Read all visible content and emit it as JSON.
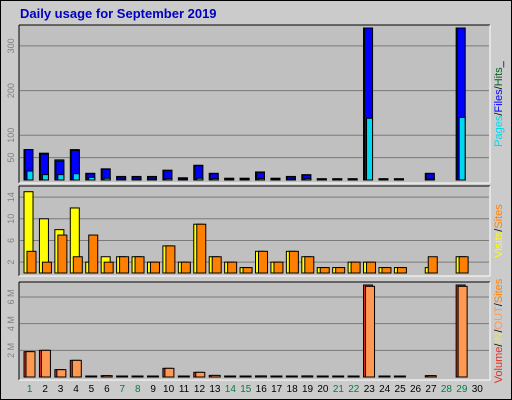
{
  "title": "Daily usage for September 2019",
  "colors": {
    "pages": "#00d8f0",
    "files": "#0000ff",
    "hits": "#006020",
    "visits": "#ffff00",
    "sites": "#ff8000",
    "kbytes": "#e03020",
    "in": "#e8e860",
    "out": "#ff9850",
    "weekend": "#008040",
    "weekday": "#000000",
    "panel": "#c0c0c0"
  },
  "chart_data": {
    "type": "bar",
    "days": [
      "1",
      "2",
      "3",
      "4",
      "5",
      "6",
      "7",
      "8",
      "9",
      "10",
      "11",
      "12",
      "13",
      "14",
      "15",
      "16",
      "17",
      "18",
      "19",
      "20",
      "21",
      "22",
      "23",
      "24",
      "25",
      "26",
      "27",
      "28",
      "29",
      "30"
    ],
    "weekend_days": [
      "1",
      "7",
      "8",
      "14",
      "15",
      "21",
      "22",
      "28",
      "29"
    ],
    "panels": [
      {
        "id": "hits",
        "legend": [
          "Pages",
          "/",
          "Files",
          "/",
          "Hits",
          "_"
        ],
        "legend_colors": [
          "#00d8f0",
          "#000000",
          "#0000ff",
          "#000000",
          "#006020",
          "#000000"
        ],
        "ticks": [
          "50",
          "100",
          "200",
          "300"
        ],
        "tick_values": [
          50,
          100,
          200,
          300
        ],
        "ymax": 340,
        "series": [
          {
            "name": "Hits",
            "values": [
              68,
              60,
              45,
              68,
              15,
              25,
              8,
              8,
              8,
              22,
              5,
              33,
              15,
              4,
              4,
              18,
              4,
              8,
              12,
              3,
              3,
              3,
              340,
              3,
              3,
              0,
              15,
              0,
              340,
              0
            ]
          },
          {
            "name": "Files",
            "values": [
              68,
              58,
              42,
              66,
              14,
              24,
              7,
              7,
              7,
              21,
              4,
              32,
              14,
              3,
              3,
              17,
              3,
              7,
              11,
              2,
              2,
              2,
              340,
              2,
              2,
              0,
              14,
              0,
              340,
              0
            ]
          },
          {
            "name": "Pages",
            "values": [
              20,
              12,
              12,
              14,
              6,
              4,
              2,
              2,
              2,
              3,
              2,
              4,
              3,
              1,
              1,
              3,
              1,
              2,
              3,
              1,
              1,
              1,
              138,
              1,
              1,
              0,
              1,
              0,
              140,
              0
            ]
          }
        ]
      },
      {
        "id": "visits",
        "legend": [
          "Visits",
          "/",
          "Sites"
        ],
        "legend_colors": [
          "#ffff00",
          "#000000",
          "#ff8000"
        ],
        "ticks": [
          "2",
          "6",
          "10",
          "14"
        ],
        "tick_values": [
          2,
          6,
          10,
          14
        ],
        "ymax": 15.5,
        "series": [
          {
            "name": "Visits",
            "values": [
              15,
              10,
              8,
              12,
              2,
              3,
              3,
              3,
              2,
              5,
              2,
              9,
              3,
              2,
              1,
              4,
              2,
              4,
              3,
              1,
              1,
              2,
              2,
              1,
              1,
              0,
              1,
              0,
              3,
              0
            ]
          },
          {
            "name": "Sites",
            "values": [
              4,
              2,
              7,
              3,
              7,
              2,
              3,
              3,
              2,
              5,
              2,
              9,
              3,
              2,
              1,
              4,
              2,
              4,
              3,
              1,
              1,
              2,
              2,
              1,
              1,
              0,
              3,
              0,
              3,
              0
            ]
          }
        ]
      },
      {
        "id": "kbytes",
        "legend": [
          "Volume",
          "/",
          "IN",
          "/",
          "OUT",
          "/",
          "Sites"
        ],
        "legend_colors": [
          "#e03020",
          "#000000",
          "#e8e860",
          "#000000",
          "#ff9850",
          "#000000",
          "#ff8000"
        ],
        "ticks": [
          "2 M",
          "4 M",
          "6 M"
        ],
        "tick_values": [
          2,
          4,
          6
        ],
        "unit": "M",
        "ymax": 6.9,
        "series": [
          {
            "name": "Volume",
            "values": [
              1.9,
              2.0,
              0.55,
              1.25,
              0.02,
              0.1,
              0.02,
              0.02,
              0.02,
              0.65,
              0.02,
              0.35,
              0.12,
              0.02,
              0.02,
              0.08,
              0.02,
              0.02,
              0.08,
              0.02,
              0.02,
              0.02,
              6.9,
              0.02,
              0.02,
              0,
              0.1,
              0,
              6.9,
              0
            ]
          },
          {
            "name": "OUT",
            "values": [
              1.9,
              2.0,
              0.55,
              1.25,
              0.02,
              0.1,
              0.02,
              0.02,
              0.02,
              0.65,
              0.02,
              0.35,
              0.12,
              0.02,
              0.02,
              0.08,
              0.02,
              0.02,
              0.08,
              0.02,
              0.02,
              0.02,
              6.8,
              0.02,
              0.02,
              0,
              0.1,
              0,
              6.8,
              0
            ]
          }
        ]
      }
    ]
  }
}
